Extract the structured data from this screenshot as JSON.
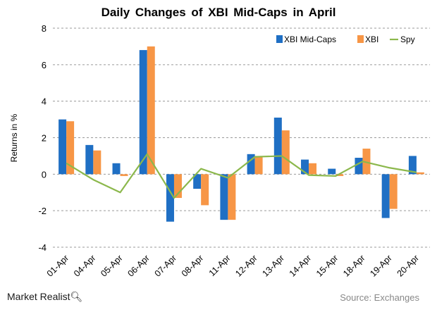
{
  "chart_data": {
    "type": "bar",
    "title": "Daily  Changes  of XBI Mid-Caps  in April",
    "xlabel": "",
    "ylabel": "Returns in %",
    "ylim": [
      -4,
      8
    ],
    "yticks": [
      -4,
      -2,
      0,
      2,
      4,
      6,
      8
    ],
    "grid": true,
    "legend_position": "top-right",
    "categories": [
      "01-Apr",
      "04-Apr",
      "05-Apr",
      "06-Apr",
      "07-Apr",
      "08-Apr",
      "11-Apr",
      "12-Apr",
      "13-Apr",
      "14-Apr",
      "15-Apr",
      "18-Apr",
      "19-Apr",
      "20-Apr"
    ],
    "series": [
      {
        "name": "XBI Mid-Caps",
        "kind": "bar",
        "color": "#1f6fc4",
        "values": [
          3.0,
          1.6,
          0.6,
          6.8,
          -2.6,
          -0.8,
          -2.5,
          1.1,
          3.1,
          0.8,
          0.3,
          0.9,
          -2.4,
          1.0
        ]
      },
      {
        "name": "XBI",
        "kind": "bar",
        "color": "#f79646",
        "values": [
          2.9,
          1.3,
          -0.1,
          7.0,
          -1.3,
          -1.7,
          -2.5,
          1.0,
          2.4,
          0.6,
          -0.1,
          1.4,
          -1.9,
          0.1
        ]
      },
      {
        "name": "Spy",
        "kind": "line",
        "color": "#8cb84c",
        "values": [
          0.6,
          -0.3,
          -1.0,
          1.1,
          -1.3,
          0.3,
          -0.2,
          0.95,
          1.0,
          -0.05,
          -0.1,
          0.7,
          0.35,
          0.1
        ]
      }
    ]
  },
  "footer": {
    "brand": "Market Realist",
    "source": "Source: Exchanges"
  }
}
